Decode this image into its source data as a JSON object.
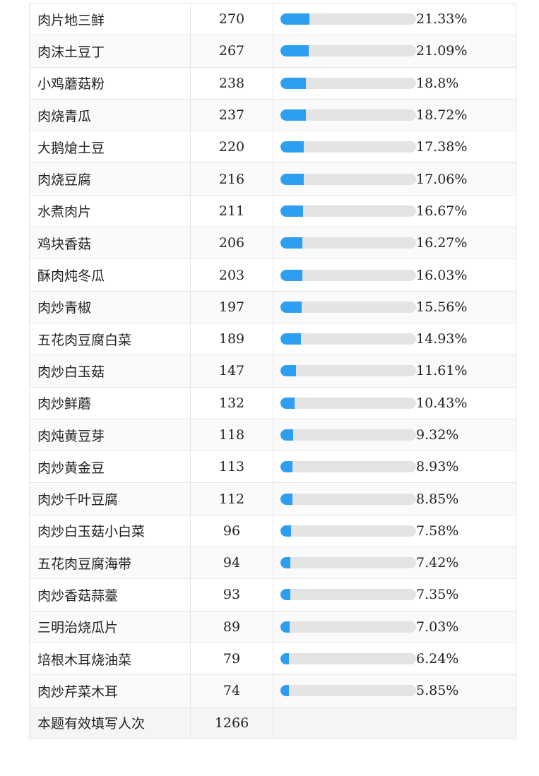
{
  "rows": [
    {
      "option": "肉片地三鲜",
      "count": "270",
      "percent": "21.33%",
      "fraction": 0.2133
    },
    {
      "option": "肉沫土豆丁",
      "count": "267",
      "percent": "21.09%",
      "fraction": 0.2109
    },
    {
      "option": "小鸡蘑菇粉",
      "count": "238",
      "percent": "18.8%",
      "fraction": 0.188
    },
    {
      "option": "肉烧青瓜",
      "count": "237",
      "percent": "18.72%",
      "fraction": 0.1872
    },
    {
      "option": "大鹅熗土豆",
      "count": "220",
      "percent": "17.38%",
      "fraction": 0.1738
    },
    {
      "option": "肉烧豆腐",
      "count": "216",
      "percent": "17.06%",
      "fraction": 0.1706
    },
    {
      "option": "水煮肉片",
      "count": "211",
      "percent": "16.67%",
      "fraction": 0.1667
    },
    {
      "option": "鸡块香菇",
      "count": "206",
      "percent": "16.27%",
      "fraction": 0.1627
    },
    {
      "option": "酥肉炖冬瓜",
      "count": "203",
      "percent": "16.03%",
      "fraction": 0.1603
    },
    {
      "option": "肉炒青椒",
      "count": "197",
      "percent": "15.56%",
      "fraction": 0.1556
    },
    {
      "option": "五花肉豆腐白菜",
      "count": "189",
      "percent": "14.93%",
      "fraction": 0.1493
    },
    {
      "option": "肉炒白玉菇",
      "count": "147",
      "percent": "11.61%",
      "fraction": 0.1161
    },
    {
      "option": "肉炒鲜蘑",
      "count": "132",
      "percent": "10.43%",
      "fraction": 0.1043
    },
    {
      "option": "肉炖黄豆芽",
      "count": "118",
      "percent": "9.32%",
      "fraction": 0.0932
    },
    {
      "option": "肉炒黄金豆",
      "count": "113",
      "percent": "8.93%",
      "fraction": 0.0893
    },
    {
      "option": "肉炒千叶豆腐",
      "count": "112",
      "percent": "8.85%",
      "fraction": 0.0885
    },
    {
      "option": "肉炒白玉菇小白菜",
      "count": "96",
      "percent": "7.58%",
      "fraction": 0.0758
    },
    {
      "option": "五花肉豆腐海带",
      "count": "94",
      "percent": "7.42%",
      "fraction": 0.0742
    },
    {
      "option": "肉炒香菇蒜薹",
      "count": "93",
      "percent": "7.35%",
      "fraction": 0.0735
    },
    {
      "option": "三明治烧瓜片",
      "count": "89",
      "percent": "7.03%",
      "fraction": 0.0703
    },
    {
      "option": "培根木耳烧油菜",
      "count": "79",
      "percent": "6.24%",
      "fraction": 0.0624
    },
    {
      "option": "肉炒芹菜木耳",
      "count": "74",
      "percent": "5.85%",
      "fraction": 0.0585
    }
  ],
  "total": {
    "label": "本题有效填写人次",
    "count": "1266"
  },
  "colors": {
    "bar_fill": "#2e9ff0",
    "bar_track": "#e4e4e4"
  }
}
